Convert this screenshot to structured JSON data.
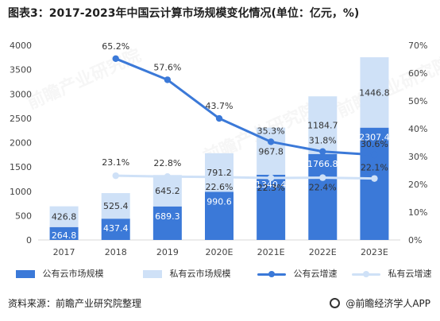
{
  "header": {
    "title": "图表3：2017-2023年中国云计算市场规模变化情况(单位：亿元，%)"
  },
  "footer": {
    "source": "资料来源：前瞻产业研究院整理",
    "brand": "@前瞻经济学人APP"
  },
  "colors": {
    "public_bar": "#3b79d8",
    "private_bar": "#cfe1f7",
    "public_line": "#3b79d8",
    "private_line": "#cfe1f7",
    "axis": "#d9d9d9",
    "grid": "#eeeeee",
    "text": "#444444"
  },
  "chart_data": {
    "type": "bar",
    "categories": [
      "2017",
      "2018",
      "2019",
      "2020E",
      "2021E",
      "2022E",
      "2023E"
    ],
    "series": [
      {
        "name": "公有云市场规模",
        "kind": "bar",
        "axis": "left",
        "values": [
          264.8,
          437.4,
          689.3,
          990.6,
          1340.4,
          1766.8,
          2307.4
        ]
      },
      {
        "name": "私有云市场规模",
        "kind": "bar",
        "axis": "left",
        "values": [
          426.8,
          525.4,
          645.2,
          791.2,
          967.8,
          1184.7,
          1446.8
        ]
      },
      {
        "name": "公有云增速",
        "kind": "line",
        "axis": "right",
        "values": [
          null,
          65.2,
          57.6,
          43.7,
          35.3,
          31.8,
          30.6
        ]
      },
      {
        "name": "私有云增速",
        "kind": "line",
        "axis": "right",
        "values": [
          null,
          23.1,
          22.8,
          22.6,
          22.3,
          22.4,
          22.1
        ]
      }
    ],
    "bar_labels": {
      "public": [
        "264.8",
        "437.4",
        "689.3",
        "990.6",
        "1340.4",
        "1766.8",
        "2307.4"
      ],
      "private": [
        "426.8",
        "525.4",
        "645.2",
        "791.2",
        "967.8",
        "1184.7",
        "1446.8"
      ]
    },
    "line_labels": {
      "public_growth": [
        "",
        "65.2%",
        "57.6%",
        "43.7%",
        "35.3%",
        "31.8%",
        "30.6%"
      ],
      "private_growth": [
        "",
        "23.1%",
        "22.8%",
        "22.6%",
        "22.3%",
        "22.4%",
        "22.1%"
      ]
    },
    "y_left": {
      "min": 0,
      "max": 4000,
      "ticks": [
        0,
        500,
        1000,
        1500,
        2000,
        2500,
        3000,
        3500,
        4000
      ],
      "tick_labels": [
        "0",
        "500",
        "1000",
        "1500",
        "2000",
        "2500",
        "3000",
        "3500",
        "4000"
      ]
    },
    "y_right": {
      "min": 0,
      "max": 70,
      "ticks": [
        0,
        10,
        20,
        30,
        40,
        50,
        60,
        70
      ],
      "tick_labels": [
        "0%",
        "10%",
        "20%",
        "30%",
        "40%",
        "50%",
        "60%",
        "70%"
      ]
    },
    "stacked": true,
    "grid": false,
    "legend_position": "bottom"
  },
  "watermarks": {
    "items": [
      "前瞻产业研究院",
      "前瞻产业研究院",
      "前瞻产业研究院"
    ]
  }
}
